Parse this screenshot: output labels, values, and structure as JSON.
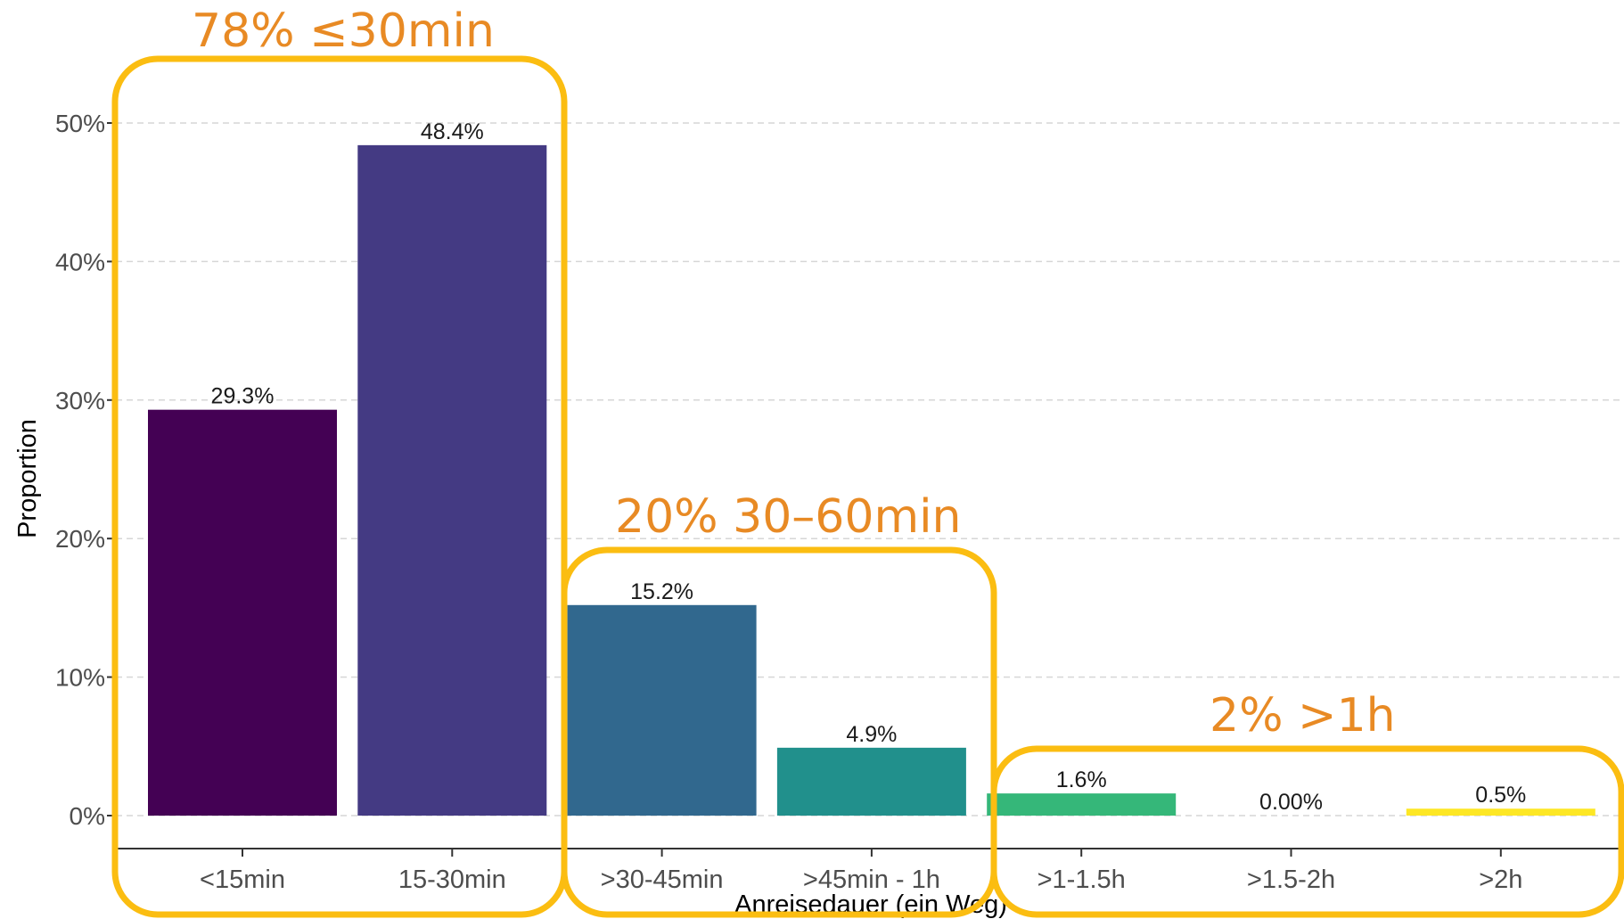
{
  "chart_data": {
    "type": "bar",
    "xlabel": "Anreisedauer (ein Weg)",
    "ylabel": "Proportion",
    "ylim": [
      0,
      50
    ],
    "yticks": [
      0,
      10,
      20,
      30,
      40,
      50
    ],
    "ytick_labels": [
      "0%",
      "10%",
      "20%",
      "30%",
      "40%",
      "50%"
    ],
    "grid": "horizontal dashed",
    "categories": [
      "<15min",
      "15-30min",
      ">30-45min",
      ">45min - 1h",
      ">1-1.5h",
      ">1.5-2h",
      ">2h"
    ],
    "values": [
      29.3,
      48.4,
      15.2,
      4.9,
      1.6,
      0.0,
      0.5
    ],
    "value_labels": [
      "29.3%",
      "48.4%",
      "15.2%",
      "4.9%",
      "1.6%",
      "0.00%",
      "0.5%"
    ],
    "colors": [
      "#440154",
      "#443a83",
      "#31688e",
      "#21908c",
      "#35b779",
      "#8fd744",
      "#fde725"
    ],
    "annotations": [
      {
        "text": "78% ≤30min",
        "categories": [
          "<15min",
          "15-30min"
        ]
      },
      {
        "text": "20% 30–60min",
        "categories": [
          ">30-45min",
          ">45min - 1h"
        ]
      },
      {
        "text": "2% >1h",
        "categories": [
          ">1-1.5h",
          ">1.5-2h",
          ">2h"
        ]
      }
    ],
    "annotation_color": "#e88a24",
    "highlight_box_color": "#fbbd11"
  }
}
